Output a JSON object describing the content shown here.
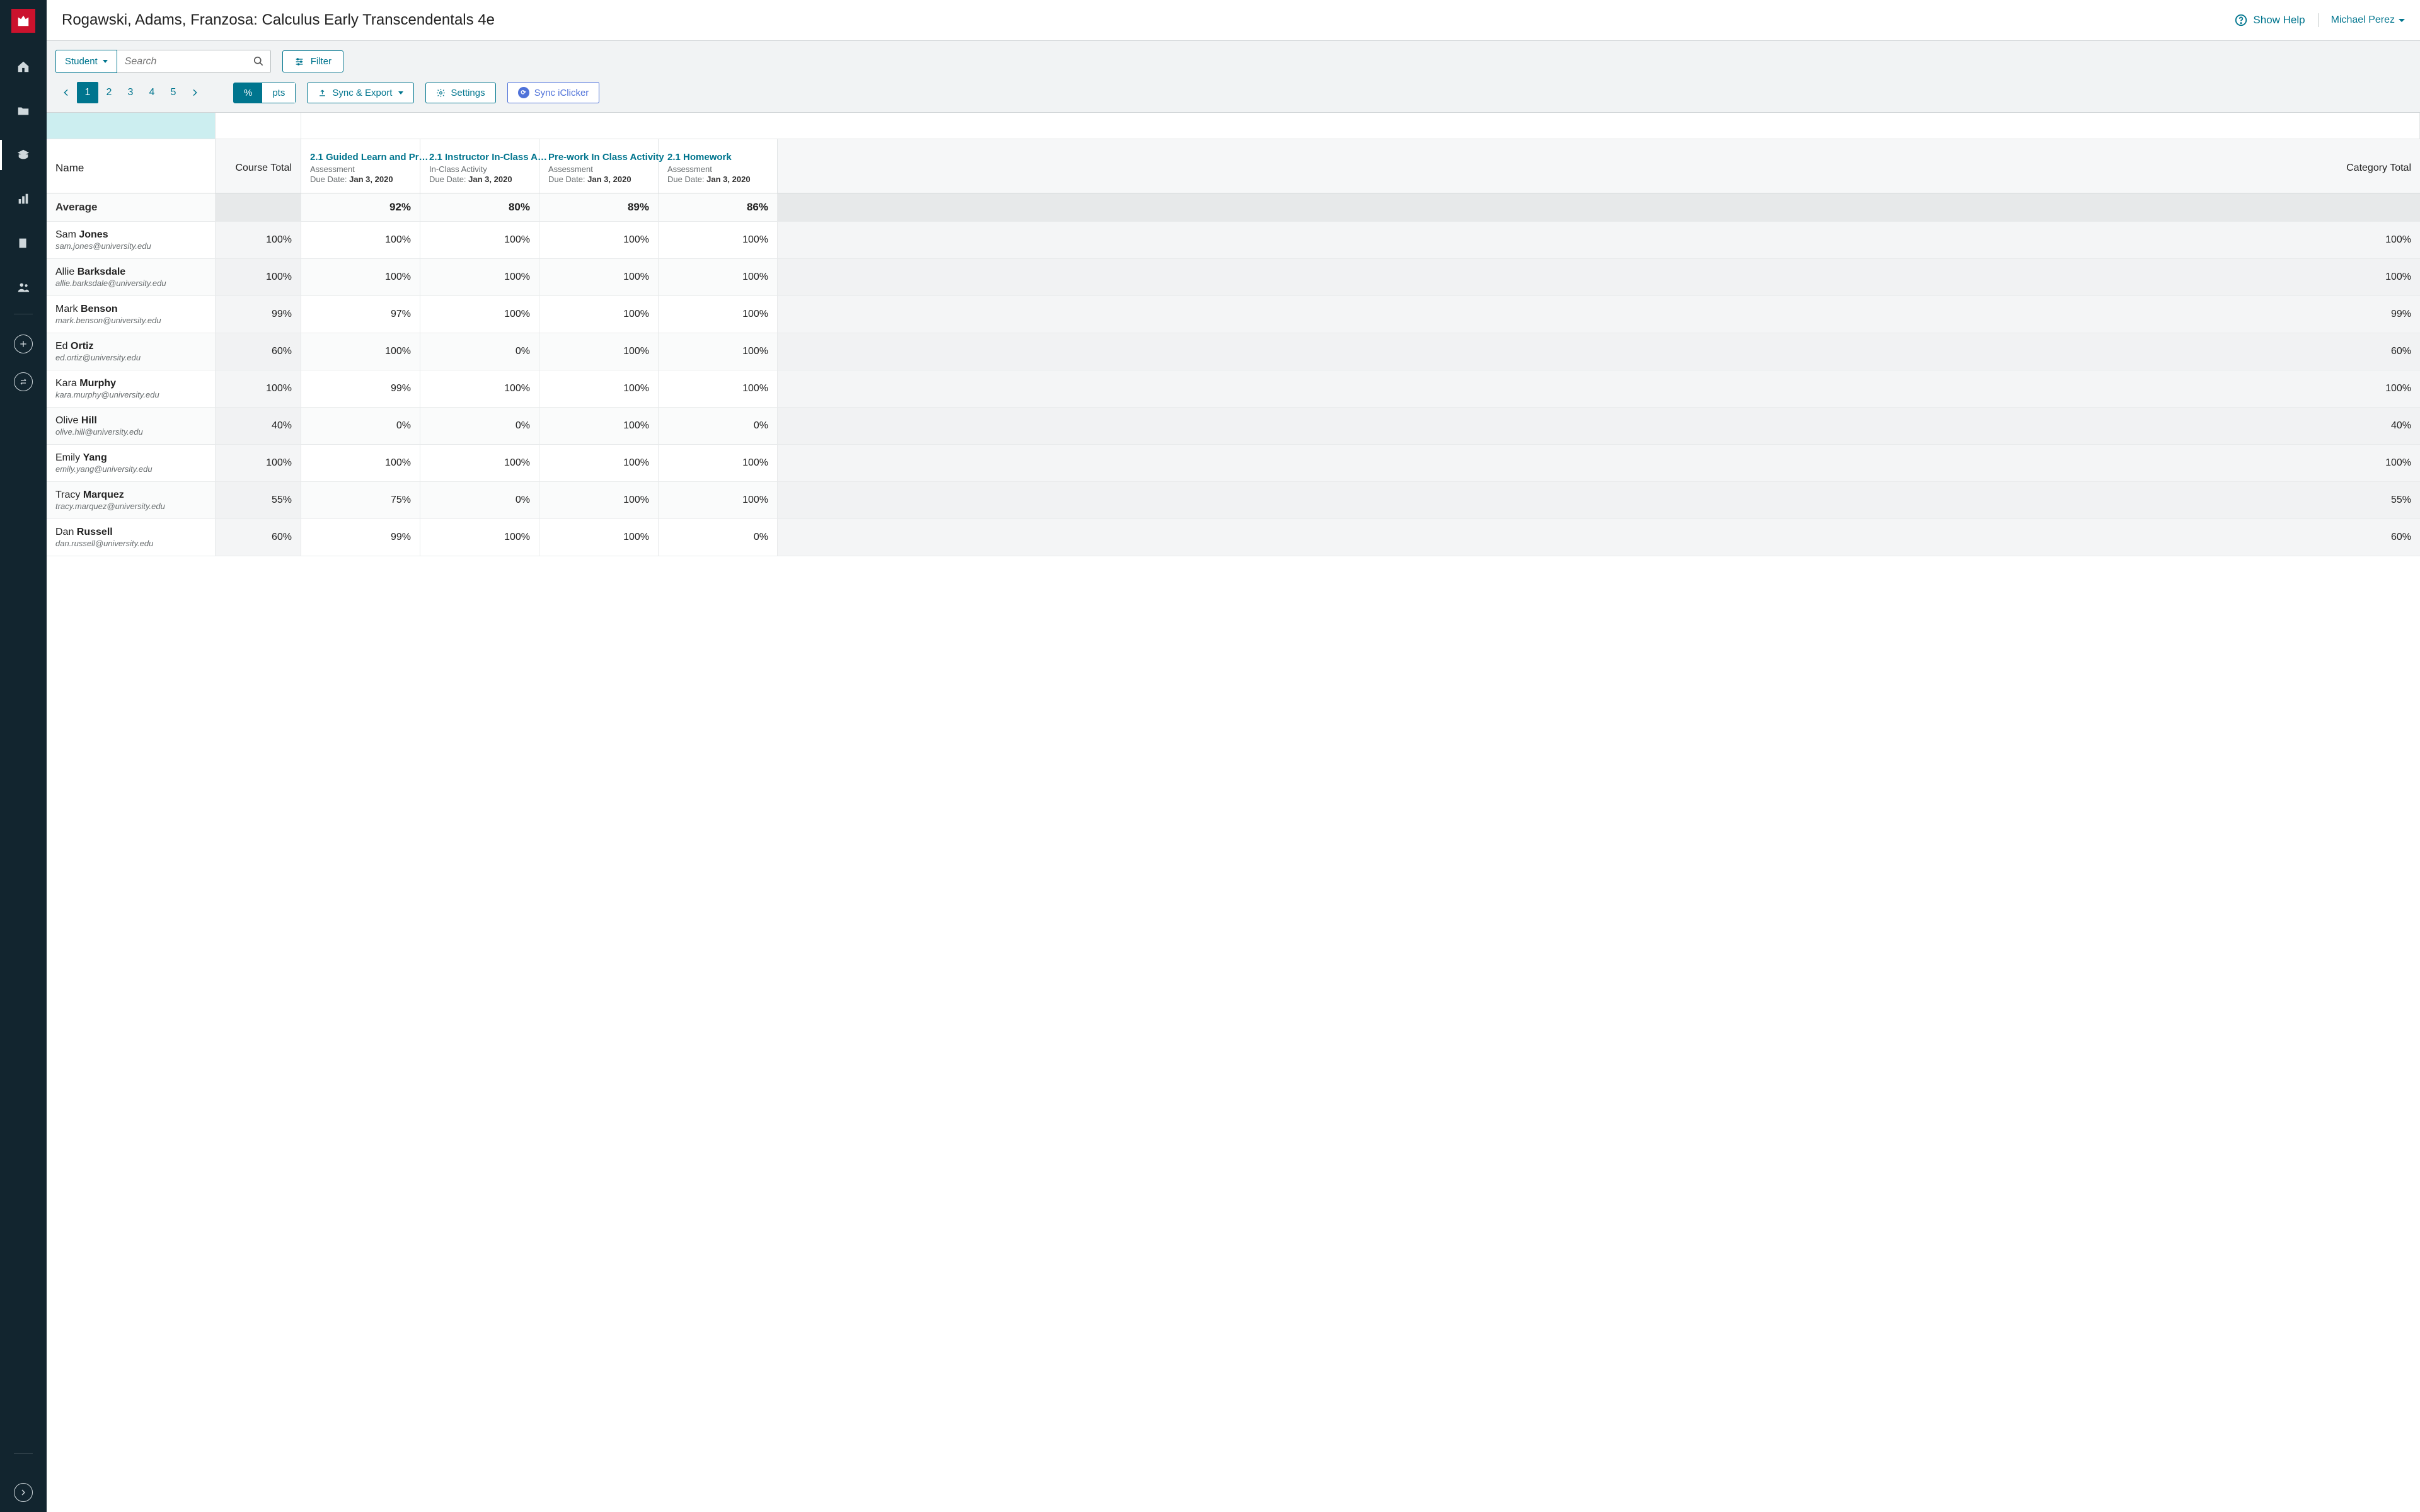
{
  "header": {
    "title": "Rogawski, Adams, Franzosa: Calculus Early Transcendentals 4e",
    "help_label": "Show Help",
    "user_name": "Michael Perez"
  },
  "toolbar": {
    "student_label": "Student",
    "search_placeholder": "Search",
    "filter_label": "Filter",
    "pages": [
      "1",
      "2",
      "3",
      "4",
      "5"
    ],
    "active_page_index": 0,
    "seg_percent": "%",
    "seg_points": "pts",
    "sync_label": "Sync & Export",
    "settings_label": "Settings",
    "iclicker_label": "Sync iClicker"
  },
  "columns": {
    "name": "Name",
    "course_total": "Course Total",
    "category_total": "Category Total",
    "due_prefix": "Due Date: ",
    "assignments": [
      {
        "title": "2.1 Guided Learn and Pr…",
        "type": "Assessment",
        "due": "Jan 3, 2020"
      },
      {
        "title": "2.1 Instructor In-Class A…",
        "type": "In-Class Activity",
        "due": "Jan 3, 2020"
      },
      {
        "title": "Pre-work In Class Activity",
        "type": "Assessment",
        "due": "Jan 3, 2020"
      },
      {
        "title": "2.1 Homework",
        "type": "Assessment",
        "due": "Jan 3, 2020"
      }
    ]
  },
  "average": {
    "label": "Average",
    "course_total": "",
    "vals": [
      "92%",
      "80%",
      "89%",
      "86%"
    ],
    "category_total": ""
  },
  "students": [
    {
      "first": "Sam",
      "last": "Jones",
      "email": "sam.jones@university.edu",
      "ct": "100%",
      "vals": [
        "100%",
        "100%",
        "100%",
        "100%"
      ],
      "cat": "100%"
    },
    {
      "first": "Allie",
      "last": "Barksdale",
      "email": "allie.barksdale@university.edu",
      "ct": "100%",
      "vals": [
        "100%",
        "100%",
        "100%",
        "100%"
      ],
      "cat": "100%"
    },
    {
      "first": "Mark",
      "last": "Benson",
      "email": "mark.benson@university.edu",
      "ct": "99%",
      "vals": [
        "97%",
        "100%",
        "100%",
        "100%"
      ],
      "cat": "99%"
    },
    {
      "first": "Ed",
      "last": "Ortiz",
      "email": "ed.ortiz@university.edu",
      "ct": "60%",
      "vals": [
        "100%",
        "0%",
        "100%",
        "100%"
      ],
      "cat": "60%"
    },
    {
      "first": "Kara",
      "last": "Murphy",
      "email": "kara.murphy@university.edu",
      "ct": "100%",
      "vals": [
        "99%",
        "100%",
        "100%",
        "100%"
      ],
      "cat": "100%"
    },
    {
      "first": "Olive",
      "last": "Hill",
      "email": "olive.hill@university.edu",
      "ct": "40%",
      "vals": [
        "0%",
        "0%",
        "100%",
        "0%"
      ],
      "cat": "40%"
    },
    {
      "first": "Emily",
      "last": "Yang",
      "email": "emily.yang@university.edu",
      "ct": "100%",
      "vals": [
        "100%",
        "100%",
        "100%",
        "100%"
      ],
      "cat": "100%"
    },
    {
      "first": "Tracy",
      "last": "Marquez",
      "email": "tracy.marquez@university.edu",
      "ct": "55%",
      "vals": [
        "75%",
        "0%",
        "100%",
        "100%"
      ],
      "cat": "55%"
    },
    {
      "first": "Dan",
      "last": "Russell",
      "email": "dan.russell@university.edu",
      "ct": "60%",
      "vals": [
        "99%",
        "100%",
        "100%",
        "0%"
      ],
      "cat": "60%"
    }
  ],
  "colors": {
    "sidebar_bg": "#12252f",
    "brand_red": "#cb122d",
    "teal": "#00758e",
    "iclicker_blue": "#4f72d9",
    "toolbar_bg": "#f1f3f4",
    "highlight": "#cceef0"
  }
}
